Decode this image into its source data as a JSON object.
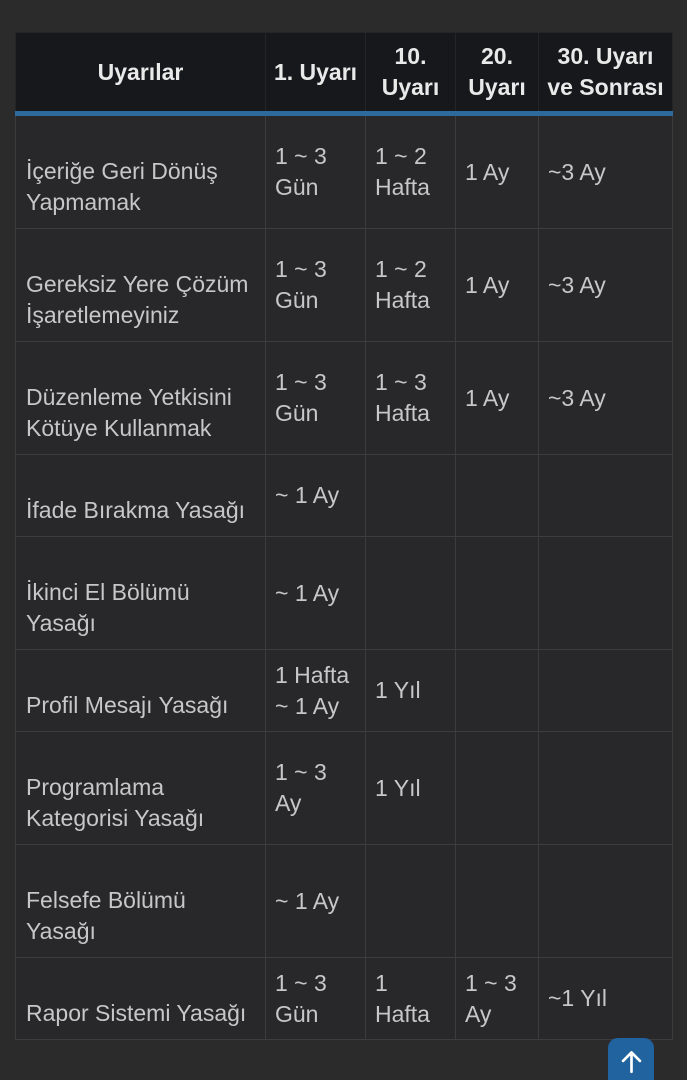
{
  "colors": {
    "accent_blue": "#2e6b9c",
    "button_blue": "#21639e",
    "header_background": "#17181b",
    "cell_background": "#28282a",
    "page_background": "#2b2b2c"
  },
  "table": {
    "headers": [
      {
        "label": "Uyarılar"
      },
      {
        "label": "1. Uyarı"
      },
      {
        "label": "10. Uyarı"
      },
      {
        "label": "20. Uyarı"
      },
      {
        "label": "30. Uyarı ve Sonrası"
      }
    ],
    "rows": [
      {
        "label": "İçeriğe Geri Dönüş Yapmamak",
        "cells": [
          "1 ~ 3 Gün",
          "1 ~ 2 Hafta",
          "1 Ay",
          "~3 Ay"
        ]
      },
      {
        "label": "Gereksiz Yere Çözüm İşaretlemeyiniz",
        "cells": [
          "1 ~ 3 Gün",
          "1 ~ 2 Hafta",
          "1 Ay",
          "~3 Ay"
        ]
      },
      {
        "label": "Düzenleme Yetkisini Kötüye Kullanmak",
        "cells": [
          "1 ~ 3 Gün",
          "1 ~ 3 Hafta",
          "1 Ay",
          "~3 Ay"
        ]
      },
      {
        "label": "İfade Bırakma Yasağı",
        "cells": [
          "~ 1 Ay",
          "",
          "",
          ""
        ]
      },
      {
        "label": "İkinci El Bölümü Yasağı",
        "cells": [
          "~ 1 Ay",
          "",
          "",
          ""
        ]
      },
      {
        "label": "Profil Mesajı Yasağı",
        "cells": [
          "1 Hafta ~ 1 Ay",
          "1 Yıl",
          "",
          ""
        ]
      },
      {
        "label": "Programlama Kategorisi Yasağı",
        "cells": [
          "1 ~ 3 Ay",
          "1 Yıl",
          "",
          ""
        ]
      },
      {
        "label": "Felsefe Bölümü Yasağı",
        "cells": [
          "~ 1 Ay",
          "",
          "",
          ""
        ]
      },
      {
        "label": "Rapor Sistemi Yasağı",
        "cells": [
          "1 ~ 3 Gün",
          "1 Hafta",
          "1 ~ 3 Ay",
          "~1 Yıl"
        ]
      }
    ]
  },
  "scroll_top_button": {
    "icon": "arrow-up"
  }
}
